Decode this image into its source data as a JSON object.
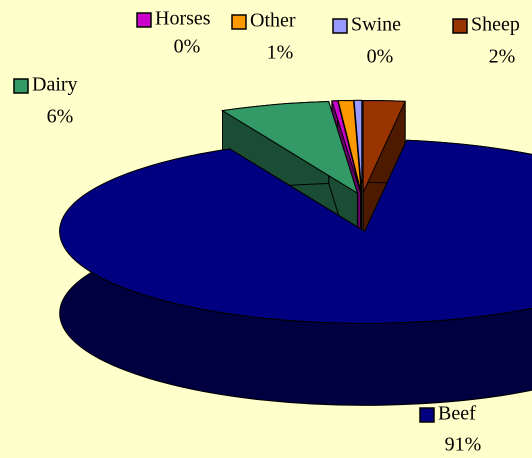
{
  "chart_data": {
    "type": "pie3d",
    "categories": [
      "Horses",
      "Other",
      "Swine",
      "Sheep",
      "Dairy",
      "Beef"
    ],
    "values": [
      0.3,
      0.8,
      0.4,
      2.2,
      5.8,
      90.6
    ],
    "value_labels": [
      "0%",
      "1%",
      "0%",
      "2%",
      "6%",
      "91%"
    ],
    "colors": [
      "#cc00cc",
      "#ff9900",
      "#9999ff",
      "#993300",
      "#339966",
      "#000080"
    ]
  }
}
